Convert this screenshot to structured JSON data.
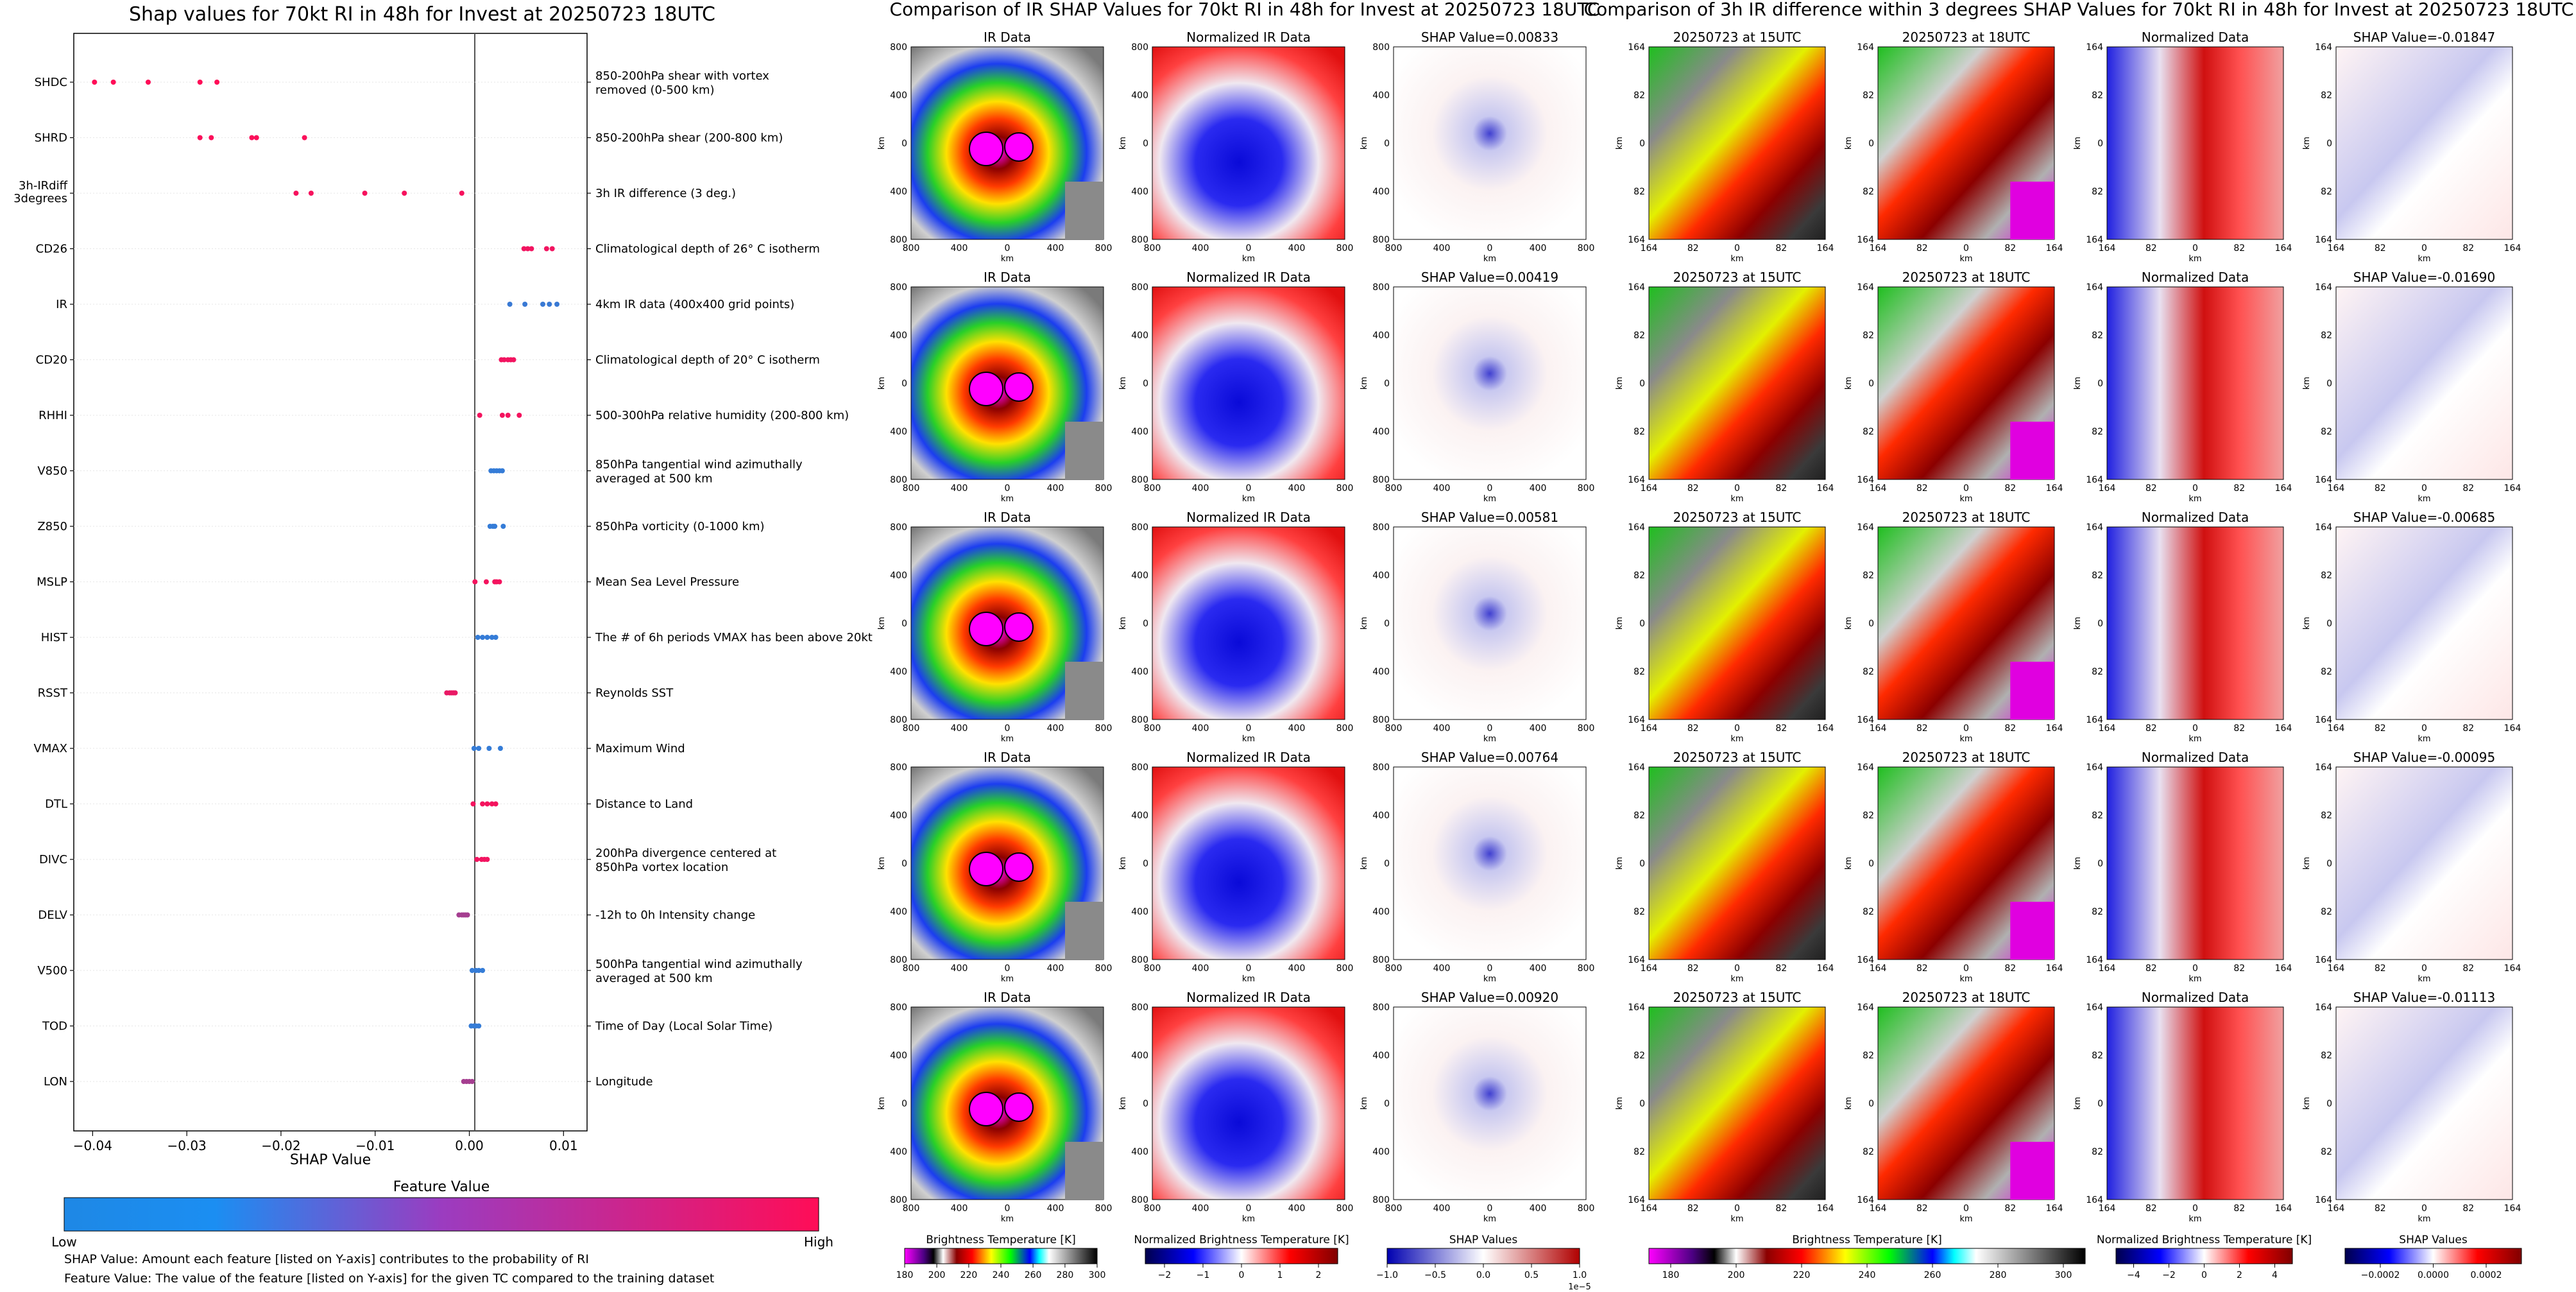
{
  "shap_panel": {
    "title": "Shap values for 70kt RI in 48h for Invest at 20250723 18UTC",
    "xlabel": "SHAP Value",
    "colorbar_label": "Feature Value",
    "colorbar_low": "Low",
    "colorbar_high": "High",
    "note1": "SHAP Value: Amount each feature [listed on Y-axis] contributes to the probability of RI",
    "note2": "Feature Value: The value of the feature [listed on Y-axis] for the given TC compared to the training dataset",
    "colors": {
      "low": "#1e88e5",
      "high": "#ff0d57"
    }
  },
  "chart_data": {
    "type": "scatter",
    "title": "Shap values for 70kt RI in 48h for Invest at 20250723 18UTC",
    "xlabel": "SHAP Value",
    "xlim": [
      -0.042,
      0.0125
    ],
    "xticks": [
      -0.04,
      -0.03,
      -0.02,
      -0.01,
      0.0,
      0.01
    ],
    "xtick_labels": [
      "−0.04",
      "−0.03",
      "−0.02",
      "−0.01",
      "0.00",
      "0.01"
    ],
    "features": [
      {
        "name": "SHDC",
        "description": "850-200hPa shear with vortex removed (0-500 km)",
        "feature_value": 1.0,
        "shap": [
          -0.0398,
          -0.0378,
          -0.0341,
          -0.0286,
          -0.0268
        ]
      },
      {
        "name": "SHRD",
        "description": "850-200hPa shear (200-800 km)",
        "feature_value": 0.98,
        "shap": [
          -0.0286,
          -0.0274,
          -0.0231,
          -0.0226,
          -0.0175
        ]
      },
      {
        "name": "3h-IRdiff 3degrees",
        "description": "3h IR difference (3 deg.)",
        "feature_value": 0.96,
        "shap": [
          -0.0184,
          -0.0168,
          -0.0111,
          -0.0069,
          -0.0008
        ]
      },
      {
        "name": "CD26",
        "description": "Climatological depth of 26° C isotherm",
        "feature_value": 0.94,
        "shap": [
          0.0058,
          0.0062,
          0.0066,
          0.0082,
          0.0088
        ]
      },
      {
        "name": "IR",
        "description": "4km IR data (400x400 grid points)",
        "feature_value": 0.12,
        "shap": [
          0.0043,
          0.0059,
          0.0078,
          0.0085,
          0.0093
        ]
      },
      {
        "name": "CD20",
        "description": "Climatological depth of 20° C isotherm",
        "feature_value": 0.94,
        "shap": [
          0.0034,
          0.0037,
          0.0041,
          0.0044,
          0.0047
        ]
      },
      {
        "name": "RHHI",
        "description": "500-300hPa relative humidity (200-800 km)",
        "feature_value": 0.95,
        "shap": [
          0.0011,
          0.0035,
          0.0041,
          0.0053
        ]
      },
      {
        "name": "V850",
        "description": "850hPa tangential wind azimuthally averaged at 500 km",
        "feature_value": 0.1,
        "shap": [
          0.0023,
          0.0026,
          0.0029,
          0.0032,
          0.0035
        ]
      },
      {
        "name": "Z850",
        "description": "850hPa vorticity (0-1000 km)",
        "feature_value": 0.1,
        "shap": [
          0.0022,
          0.0025,
          0.0027,
          0.0036
        ]
      },
      {
        "name": "MSLP",
        "description": "Mean Sea Level Pressure",
        "feature_value": 0.95,
        "shap": [
          0.0006,
          0.0018,
          0.0027,
          0.0029,
          0.0032
        ]
      },
      {
        "name": "HIST",
        "description": "The # of 6h periods VMAX has been above 20kt",
        "feature_value": 0.1,
        "shap": [
          0.0009,
          0.0014,
          0.0019,
          0.0024,
          0.0028
        ]
      },
      {
        "name": "RSST",
        "description": "Reynolds SST",
        "feature_value": 0.9,
        "shap": [
          -0.0024,
          -0.0021,
          -0.0019,
          -0.0017,
          -0.0015
        ]
      },
      {
        "name": "VMAX",
        "description": "Maximum Wind",
        "feature_value": 0.1,
        "shap": [
          0.0005,
          0.001,
          0.0021,
          0.0033
        ]
      },
      {
        "name": "DTL",
        "description": "Distance to Land",
        "feature_value": 0.95,
        "shap": [
          0.0004,
          0.0014,
          0.0019,
          0.0024,
          0.0028
        ]
      },
      {
        "name": "DIVC",
        "description": "200hPa divergence centered at 850hPa vortex location",
        "feature_value": 0.94,
        "shap": [
          0.0008,
          0.0013,
          0.0016,
          0.0019
        ]
      },
      {
        "name": "DELV",
        "description": "-12h to 0h Intensity change",
        "feature_value": 0.6,
        "shap": [
          -0.0011,
          -0.0008,
          -0.0006,
          -0.0004,
          -0.0002
        ]
      },
      {
        "name": "V500",
        "description": "500hPa tangential wind azimuthally averaged at 500 km",
        "feature_value": 0.1,
        "shap": [
          0.0003,
          0.0007,
          0.001,
          0.0014
        ]
      },
      {
        "name": "TOD",
        "description": "Time of Day (Local Solar Time)",
        "feature_value": 0.1,
        "shap": [
          0.0002,
          0.0005,
          0.0007,
          0.001
        ]
      },
      {
        "name": "LON",
        "description": "Longitude",
        "feature_value": 0.6,
        "shap": [
          -0.0006,
          -0.0003,
          0.0,
          0.0003
        ]
      }
    ]
  },
  "ir_section": {
    "title": "Comparison of IR SHAP Values for 70kt RI in 48h for Invest at 20250723 18UTC",
    "col_titles": [
      "IR Data",
      "Normalized IR Data"
    ],
    "shap_titles": [
      "SHAP Value=0.00833",
      "SHAP Value=0.00419",
      "SHAP Value=0.00581",
      "SHAP Value=0.00764",
      "SHAP Value=0.00920"
    ],
    "xlabel": "km",
    "ylabel": "km",
    "x_ticks": [
      "800",
      "400",
      "0",
      "400",
      "800"
    ],
    "y_ticks": [
      "800",
      "400",
      "0",
      "400",
      "800"
    ],
    "cbar_titles": [
      "Brightness Temperature [K]",
      "Normalized Brightness Temperature [K]",
      "SHAP Values"
    ],
    "cbar1_ticks": [
      "180",
      "200",
      "220",
      "240",
      "260",
      "280",
      "300"
    ],
    "cbar2_ticks": [
      "−2",
      "−1",
      "0",
      "1",
      "2"
    ],
    "cbar3_ticks": [
      "−1.0",
      "−0.5",
      "0.0",
      "0.5",
      "1.0"
    ],
    "cbar3_exp": "1e−5"
  },
  "diff_section": {
    "title": "Comparison of 3h IR difference within 3 degrees SHAP Values for 70kt RI in 48h for Invest at 20250723 18UTC",
    "col_titles": [
      "20250723 at 15UTC",
      "20250723 at 18UTC",
      "Normalized Data"
    ],
    "shap_titles": [
      "SHAP Value=-0.01847",
      "SHAP Value=-0.01690",
      "SHAP Value=-0.00685",
      "SHAP Value=-0.00095",
      "SHAP Value=-0.01113"
    ],
    "xlabel": "km",
    "ylabel": "km",
    "x_ticks": [
      "164",
      "82",
      "0",
      "82",
      "164"
    ],
    "y_ticks": [
      "164",
      "82",
      "0",
      "82",
      "164"
    ],
    "cbar_titles": [
      "Brightness Temperature [K]",
      "Normalized Brightness Temperature [K]",
      "SHAP Values"
    ],
    "cbar1_ticks": [
      "180",
      "200",
      "220",
      "240",
      "260",
      "280",
      "300"
    ],
    "cbar2_ticks": [
      "−4",
      "−2",
      "0",
      "2",
      "4"
    ],
    "cbar3_ticks": [
      "−0.0002",
      "0.0000",
      "0.0002"
    ]
  }
}
